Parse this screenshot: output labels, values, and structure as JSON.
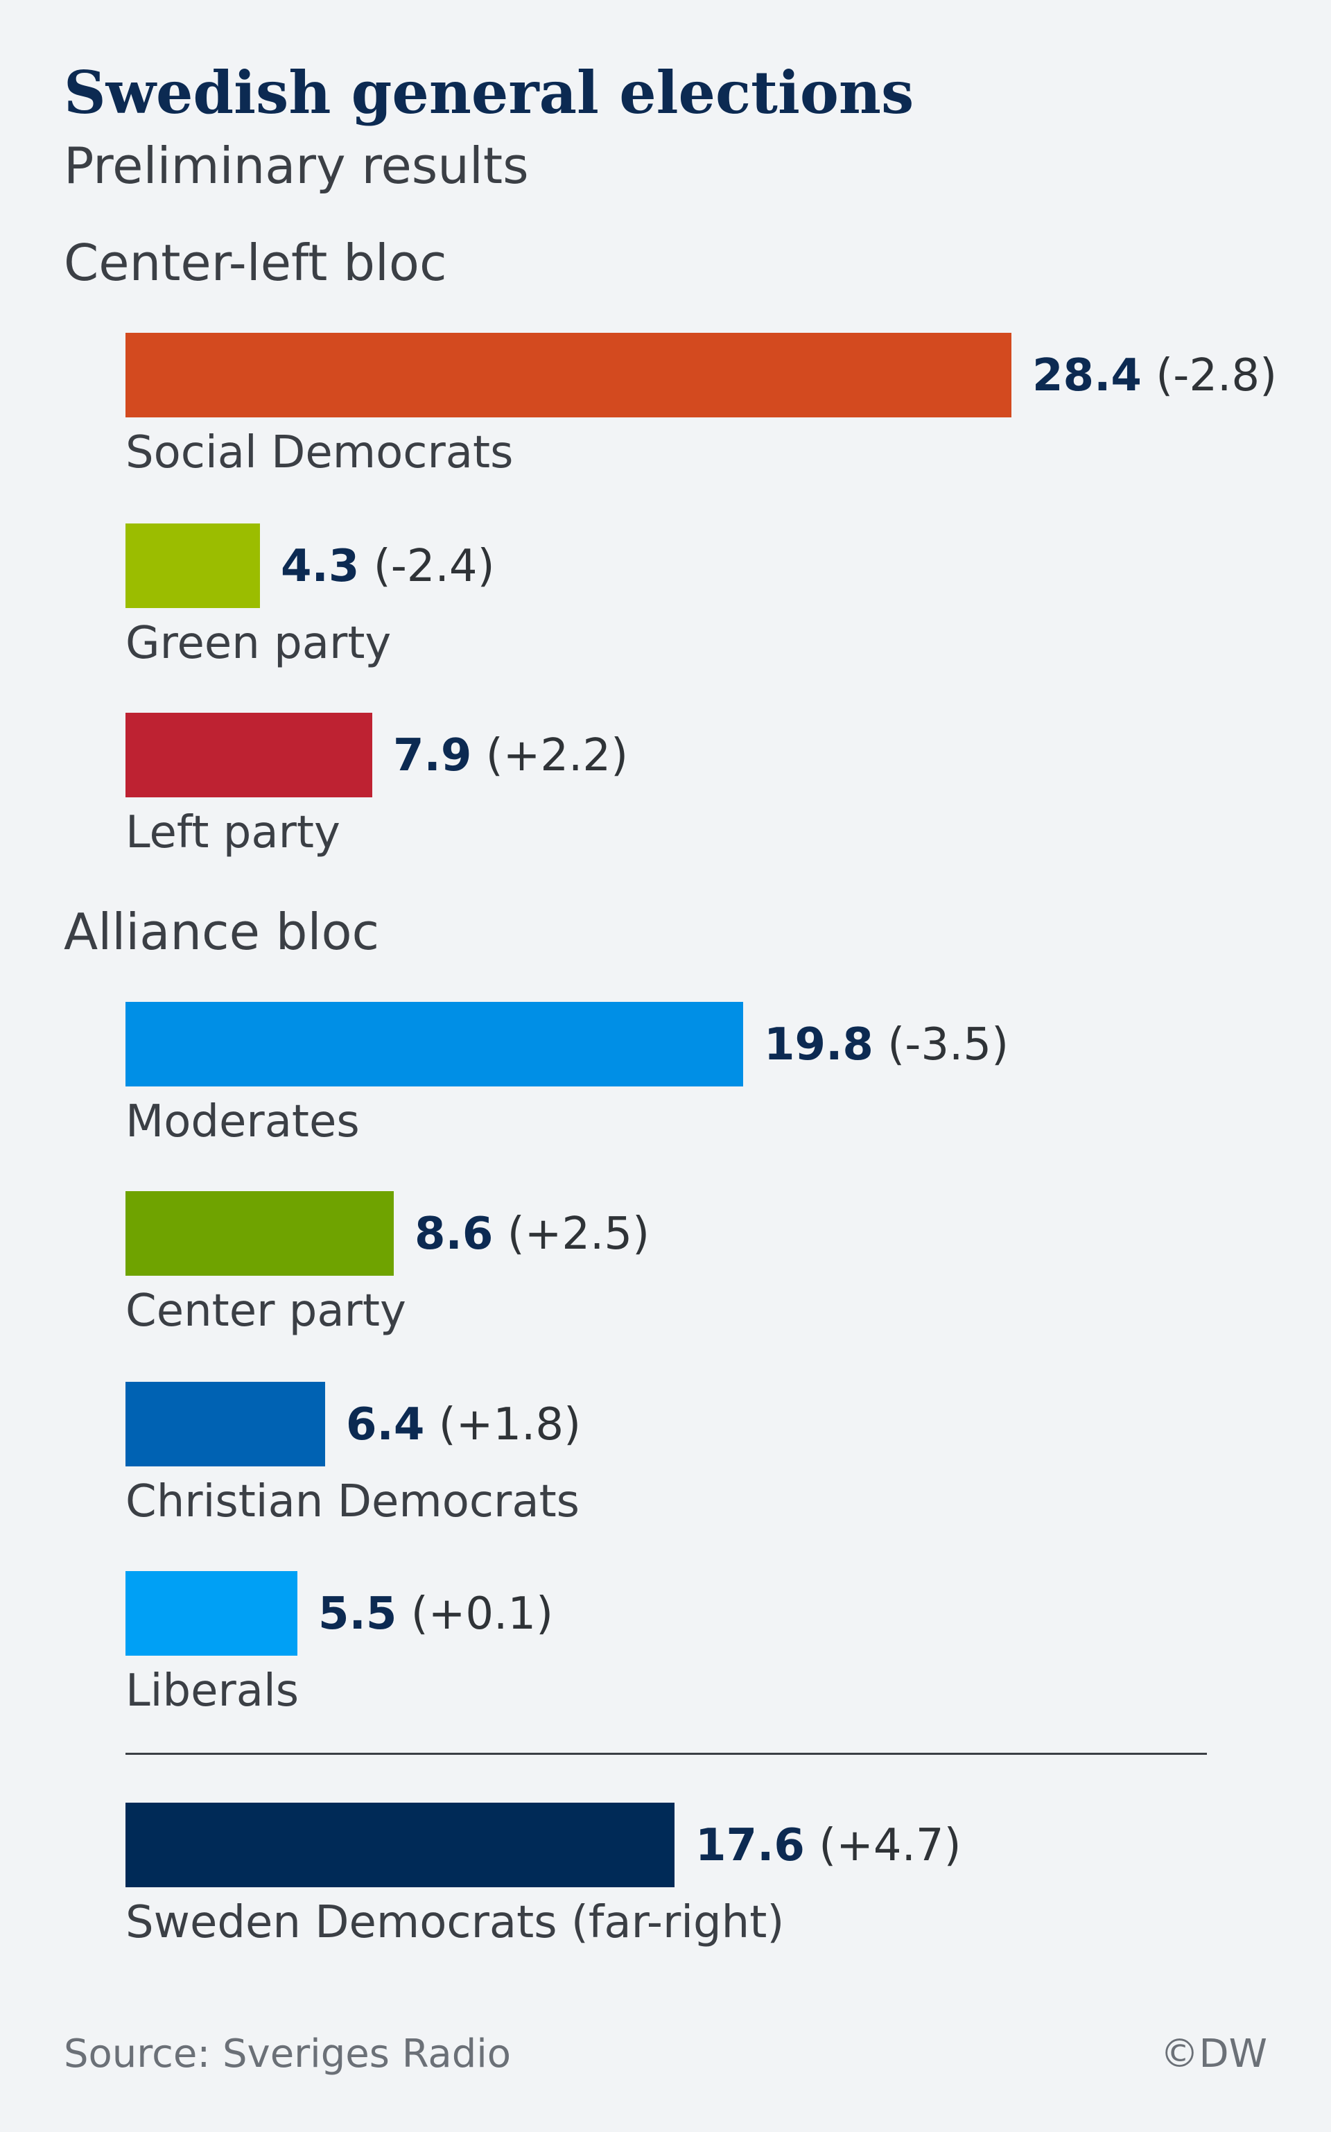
{
  "chart_data": {
    "type": "bar",
    "orientation": "horizontal",
    "title": "Swedish general elections",
    "subtitle": "Preliminary results",
    "groups": [
      {
        "name": "Center-left bloc",
        "bars": [
          {
            "party": "Social Democrats",
            "value": 28.4,
            "change": "(-2.8)",
            "color": "#d34a1f"
          },
          {
            "party": "Green party",
            "value": 4.3,
            "change": "(-2.4)",
            "color": "#9bbd00"
          },
          {
            "party": "Left party",
            "value": 7.9,
            "change": "(+2.2)",
            "color": "#be2232"
          }
        ]
      },
      {
        "name": "Alliance bloc",
        "bars": [
          {
            "party": "Moderates",
            "value": 19.8,
            "change": "(-3.5)",
            "color": "#008fe6"
          },
          {
            "party": "Center party",
            "value": 8.6,
            "change": "(+2.5)",
            "color": "#6fa300"
          },
          {
            "party": "Christian Democrats",
            "value": 6.4,
            "change": "(+1.8)",
            "color": "#0062b3"
          },
          {
            "party": "Liberals",
            "value": 5.5,
            "change": "(+0.1)",
            "color": "#00a0f5"
          }
        ]
      },
      {
        "name": "",
        "bars": [
          {
            "party": "Sweden Democrats (far-right)",
            "value": 17.6,
            "change": "(+4.7)",
            "color": "#002a57"
          }
        ]
      }
    ],
    "source": "Source: Sveriges Radio",
    "credit": "©DW"
  }
}
